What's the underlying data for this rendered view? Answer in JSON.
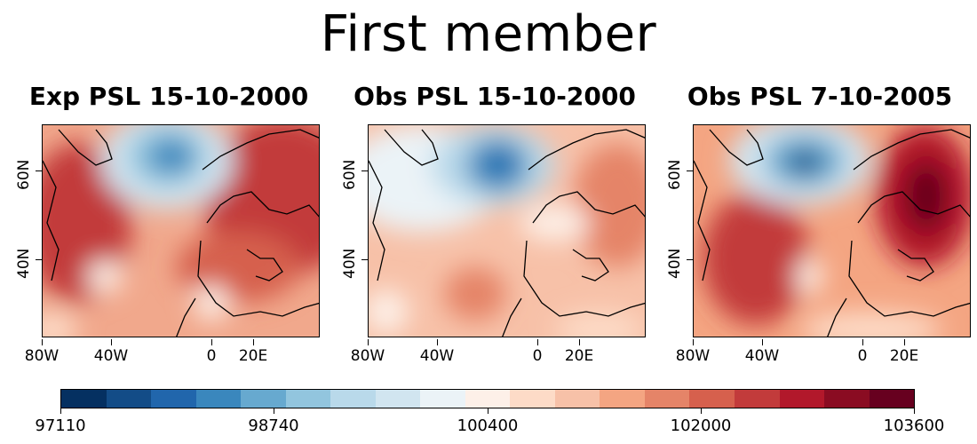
{
  "title": "First member",
  "panels": [
    {
      "title": "Exp PSL 15-10-2000"
    },
    {
      "title": "Obs PSL 15-10-2000"
    },
    {
      "title": "Obs PSL 7-10-2005"
    }
  ],
  "x_axis_labels": [
    "80W",
    "40W",
    "0",
    "20E"
  ],
  "y_axis_labels": [
    "60N",
    "40N"
  ],
  "colorbar": {
    "labels": [
      "97110",
      "98740",
      "100400",
      "102000",
      "103600"
    ],
    "colors": [
      "#053061",
      "#134c87",
      "#2166ac",
      "#3a87bd",
      "#67a9cf",
      "#92c5de",
      "#b9d9ea",
      "#d1e5f0",
      "#ebf3f7",
      "#fdf0e8",
      "#fddbc7",
      "#f7c1a8",
      "#f4a582",
      "#e58468",
      "#d6604d",
      "#c23b3b",
      "#b2182b",
      "#8a0c22",
      "#67001f"
    ]
  },
  "colors": {
    "low": "#2166ac",
    "high": "#b2182b",
    "neutral": "#f7f7f7"
  }
}
